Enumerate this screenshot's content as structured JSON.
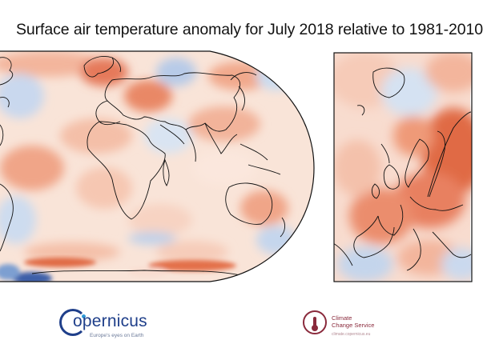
{
  "title": "Surface air temperature anomaly for July 2018 relative to 1981-2010",
  "colors": {
    "warm_strong": "#d9603a",
    "warm_mid": "#ef9a78",
    "warm_light": "#f8d6c6",
    "neutral": "#fbf3ee",
    "cool_light": "#d2e0f1",
    "cool_mid": "#9bb9de",
    "cool_strong": "#3c5fa8",
    "coastline": "#111111",
    "copernicus_blue": "#1f3f8a",
    "c3s_maroon": "#8a2a3c"
  },
  "logos": {
    "copernicus_word": "opernicus",
    "copernicus_tagline": "Europe's eyes on Earth",
    "c3s_line1": "Climate",
    "c3s_line2": "Change Service",
    "c3s_small": "climate.copernicus.eu"
  }
}
